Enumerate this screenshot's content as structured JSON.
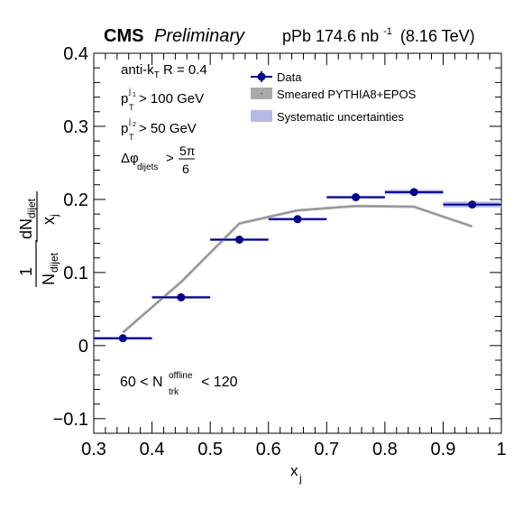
{
  "header": {
    "experiment": "CMS",
    "status": "Preliminary",
    "lumi_main": "pPb 174.6 nb",
    "lumi_sup": "-1",
    "energy": "(8.16 TeV)"
  },
  "annotations": {
    "algo_main": "anti-k",
    "algo_sub": "T",
    "algo_tail": " R = 0.4",
    "pt1_p": "p",
    "pt1_sup": "j",
    "pt1_supsub": "1",
    "pt1_sub": "T",
    "pt1_cut": "> 100 GeV",
    "pt2_p": "p",
    "pt2_sup": "j",
    "pt2_supsub": "2",
    "pt2_sub": "T",
    "pt2_cut": "> 50 GeV",
    "dphi_main": "Δφ",
    "dphi_sub": "dijets",
    "dphi_gt": ">",
    "dphi_num": "5π",
    "dphi_den": "6",
    "ntrk_pre": "60 < N",
    "ntrk_sup": "offline",
    "ntrk_sub": "trk",
    "ntrk_post": "< 120"
  },
  "legend": {
    "data": "Data",
    "mc": "Smeared PYTHIA8+EPOS",
    "syst": "Systematic uncertainties"
  },
  "axes": {
    "xlabel_main": "x",
    "xlabel_sub": "j",
    "ylabel_one": "1",
    "ylabel_N": "N",
    "ylabel_N_sub": "dijet",
    "ylabel_dN": "dN",
    "ylabel_dN_sub": "dijet",
    "ylabel_dx": "x",
    "ylabel_dx_sub": "j"
  },
  "colors": {
    "data": "#00008b",
    "mc_band": "#aaaaaa",
    "syst": "#9999dd"
  },
  "chart_data": {
    "type": "scatter",
    "xlim": [
      0.3,
      1.0
    ],
    "ylim": [
      -0.12,
      0.4
    ],
    "xticks": [
      0.3,
      0.4,
      0.5,
      0.6,
      0.7,
      0.8,
      0.9,
      1.0
    ],
    "xtick_labels": [
      "0.3",
      "0.4",
      "0.5",
      "0.6",
      "0.7",
      "0.8",
      "0.9",
      "1"
    ],
    "yticks": [
      -0.1,
      0,
      0.1,
      0.2,
      0.3,
      0.4
    ],
    "ytick_labels": [
      "−0.1",
      "0",
      "0.1",
      "0.2",
      "0.3",
      "0.4"
    ],
    "grid": false,
    "legend_position": "top-right",
    "series": [
      {
        "name": "Data",
        "x": [
          0.35,
          0.45,
          0.55,
          0.65,
          0.75,
          0.85,
          0.95
        ],
        "xerr": [
          0.05,
          0.05,
          0.05,
          0.05,
          0.05,
          0.05,
          0.05
        ],
        "y": [
          0.01,
          0.066,
          0.145,
          0.173,
          0.203,
          0.21,
          0.193
        ],
        "syst": [
          0.002,
          0.002,
          0.002,
          0.002,
          0.002,
          0.003,
          0.004
        ]
      },
      {
        "name": "Smeared PYTHIA8+EPOS",
        "x": [
          0.35,
          0.45,
          0.55,
          0.65,
          0.75,
          0.85,
          0.95
        ],
        "y": [
          0.018,
          0.087,
          0.167,
          0.185,
          0.191,
          0.19,
          0.163
        ]
      }
    ]
  }
}
